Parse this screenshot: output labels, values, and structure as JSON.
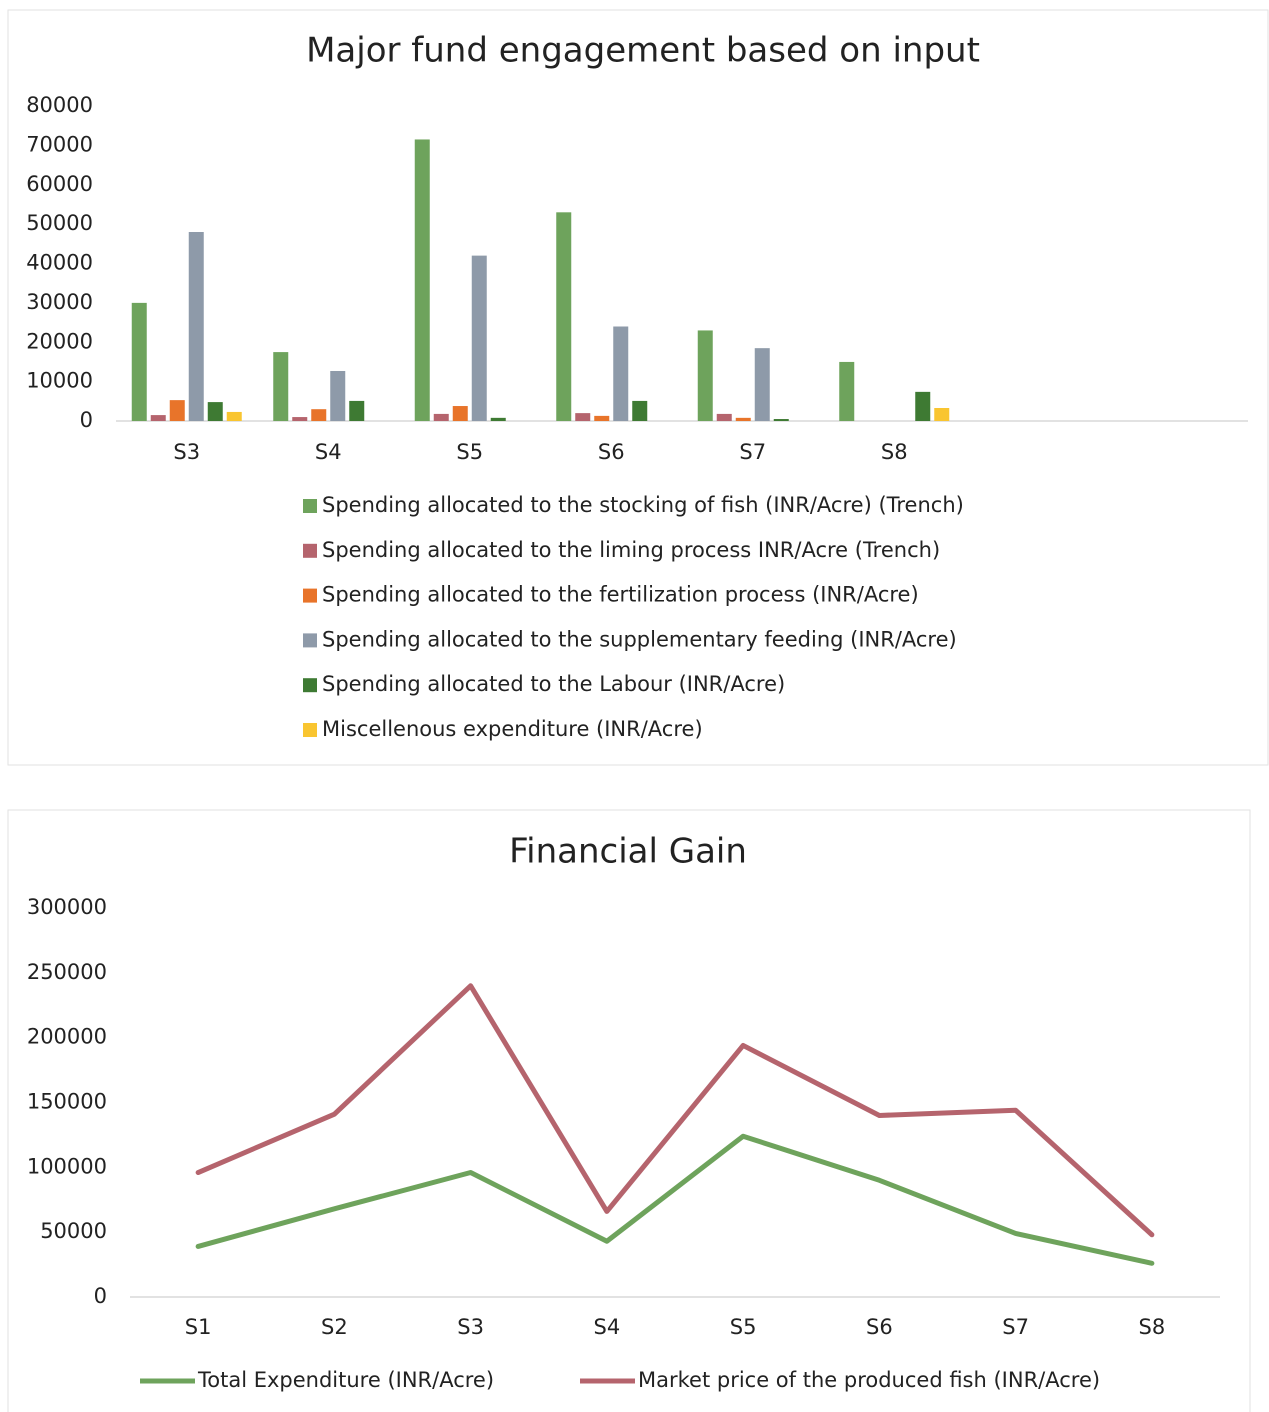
{
  "chart_data": [
    {
      "type": "bar",
      "title": "Major fund engagement based on input",
      "categories": [
        "S3",
        "S4",
        "S5",
        "S6",
        "S7",
        "S8",
        null,
        null
      ],
      "series": [
        {
          "name": "Spending allocated to the stocking of fish (INR/Acre) (Trench)",
          "color": "#6ea35c",
          "values": [
            30000,
            17500,
            71500,
            53000,
            23000,
            15000,
            null,
            null
          ]
        },
        {
          "name": "Spending allocated to the liming process INR/Acre (Trench)",
          "color": "#b5646d",
          "values": [
            1500,
            1000,
            1800,
            2000,
            1800,
            0,
            null,
            null
          ]
        },
        {
          "name": "Spending allocated to the fertilization process (INR/Acre)",
          "color": "#e8742a",
          "values": [
            5300,
            3000,
            3800,
            1300,
            800,
            0,
            null,
            null
          ]
        },
        {
          "name": "Spending allocated to the supplementary feeding (INR/Acre)",
          "color": "#8e9aa9",
          "values": [
            48000,
            12700,
            42000,
            24000,
            18500,
            0,
            null,
            null
          ]
        },
        {
          "name": "Spending allocated to the Labour (INR/Acre)",
          "color": "#3e7a33",
          "values": [
            4800,
            5100,
            800,
            5100,
            500,
            7400,
            null,
            null
          ]
        },
        {
          "name": "Miscellenous expenditure (INR/Acre)",
          "color": "#f9c530",
          "values": [
            2300,
            0,
            0,
            0,
            0,
            3300,
            null,
            null
          ]
        }
      ],
      "ylim": [
        0,
        80000
      ],
      "yticks": [
        0,
        10000,
        20000,
        30000,
        40000,
        50000,
        60000,
        70000,
        80000
      ],
      "grid": false,
      "legend": "bottom"
    },
    {
      "type": "line",
      "title": "Financial Gain",
      "categories": [
        "S1",
        "S2",
        "S3",
        "S4",
        "S5",
        "S6",
        "S7",
        "S8"
      ],
      "series": [
        {
          "name": "Total Expenditure (INR/Acre)",
          "color": "#6ea35c",
          "values": [
            39000,
            68000,
            96000,
            43000,
            124000,
            90000,
            49000,
            26000
          ]
        },
        {
          "name": "Market price of the produced fish (INR/Acre)",
          "color": "#b5646d",
          "values": [
            96000,
            141000,
            240000,
            66000,
            194000,
            140000,
            144000,
            48000
          ]
        }
      ],
      "ylim": [
        0,
        300000
      ],
      "yticks": [
        0,
        50000,
        100000,
        150000,
        200000,
        250000,
        300000
      ],
      "grid": false,
      "legend": "bottom"
    }
  ]
}
